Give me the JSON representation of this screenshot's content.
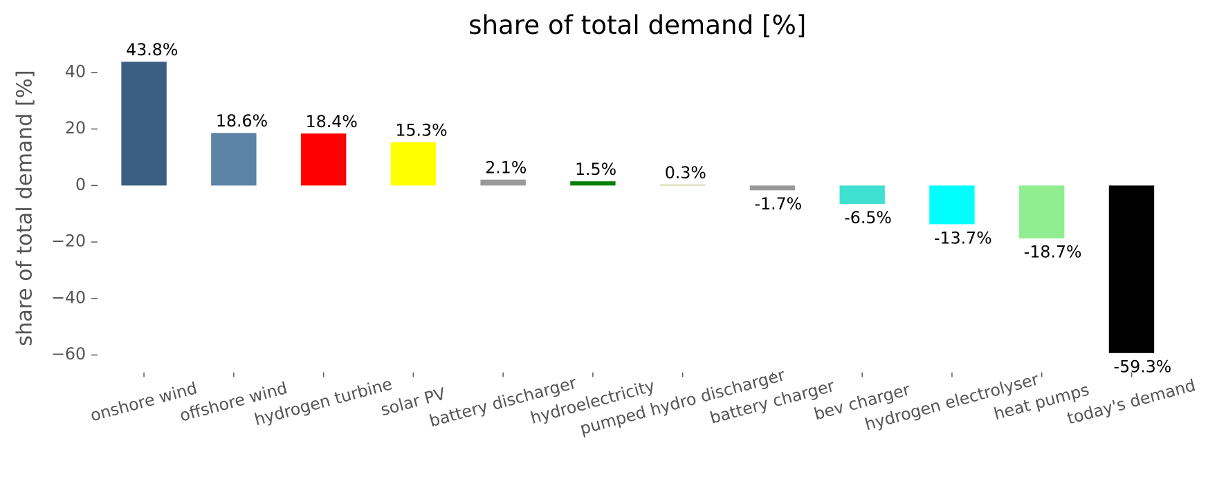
{
  "chart_data": {
    "type": "bar",
    "title": "share of total demand [%]",
    "y_label": "share of total demand [%]",
    "categories": [
      "onshore wind",
      "offshore wind",
      "hydrogen turbine",
      "solar PV",
      "battery discharger",
      "hydroelectricity",
      "pumped hydro discharger",
      "battery charger",
      "bev charger",
      "hydrogen electrolyser",
      "heat pumps",
      "today's demand"
    ],
    "values": [
      43.8,
      18.6,
      18.4,
      15.3,
      2.1,
      1.5,
      0.3,
      -1.7,
      -6.5,
      -13.7,
      -18.7,
      -59.3
    ],
    "value_labels": [
      "43.8%",
      "18.6%",
      "18.4%",
      "15.3%",
      "2.1%",
      "1.5%",
      "0.3%",
      "-1.7%",
      "-6.5%",
      "-13.7%",
      "-18.7%",
      "-59.3%"
    ],
    "colors": [
      "#3b5f82",
      "#5b84a6",
      "#ff0000",
      "#ffff00",
      "#999999",
      "#008000",
      "#baba78",
      "#999999",
      "#40e0d0",
      "#00ffff",
      "#90ee90",
      "#000000"
    ],
    "ylim": [
      -64.5,
      49
    ],
    "yticks": [
      {
        "value": -60,
        "label": "−60"
      },
      {
        "value": -40,
        "label": "−40"
      },
      {
        "value": -20,
        "label": "−20"
      },
      0,
      20,
      40
    ],
    "grid": false
  }
}
